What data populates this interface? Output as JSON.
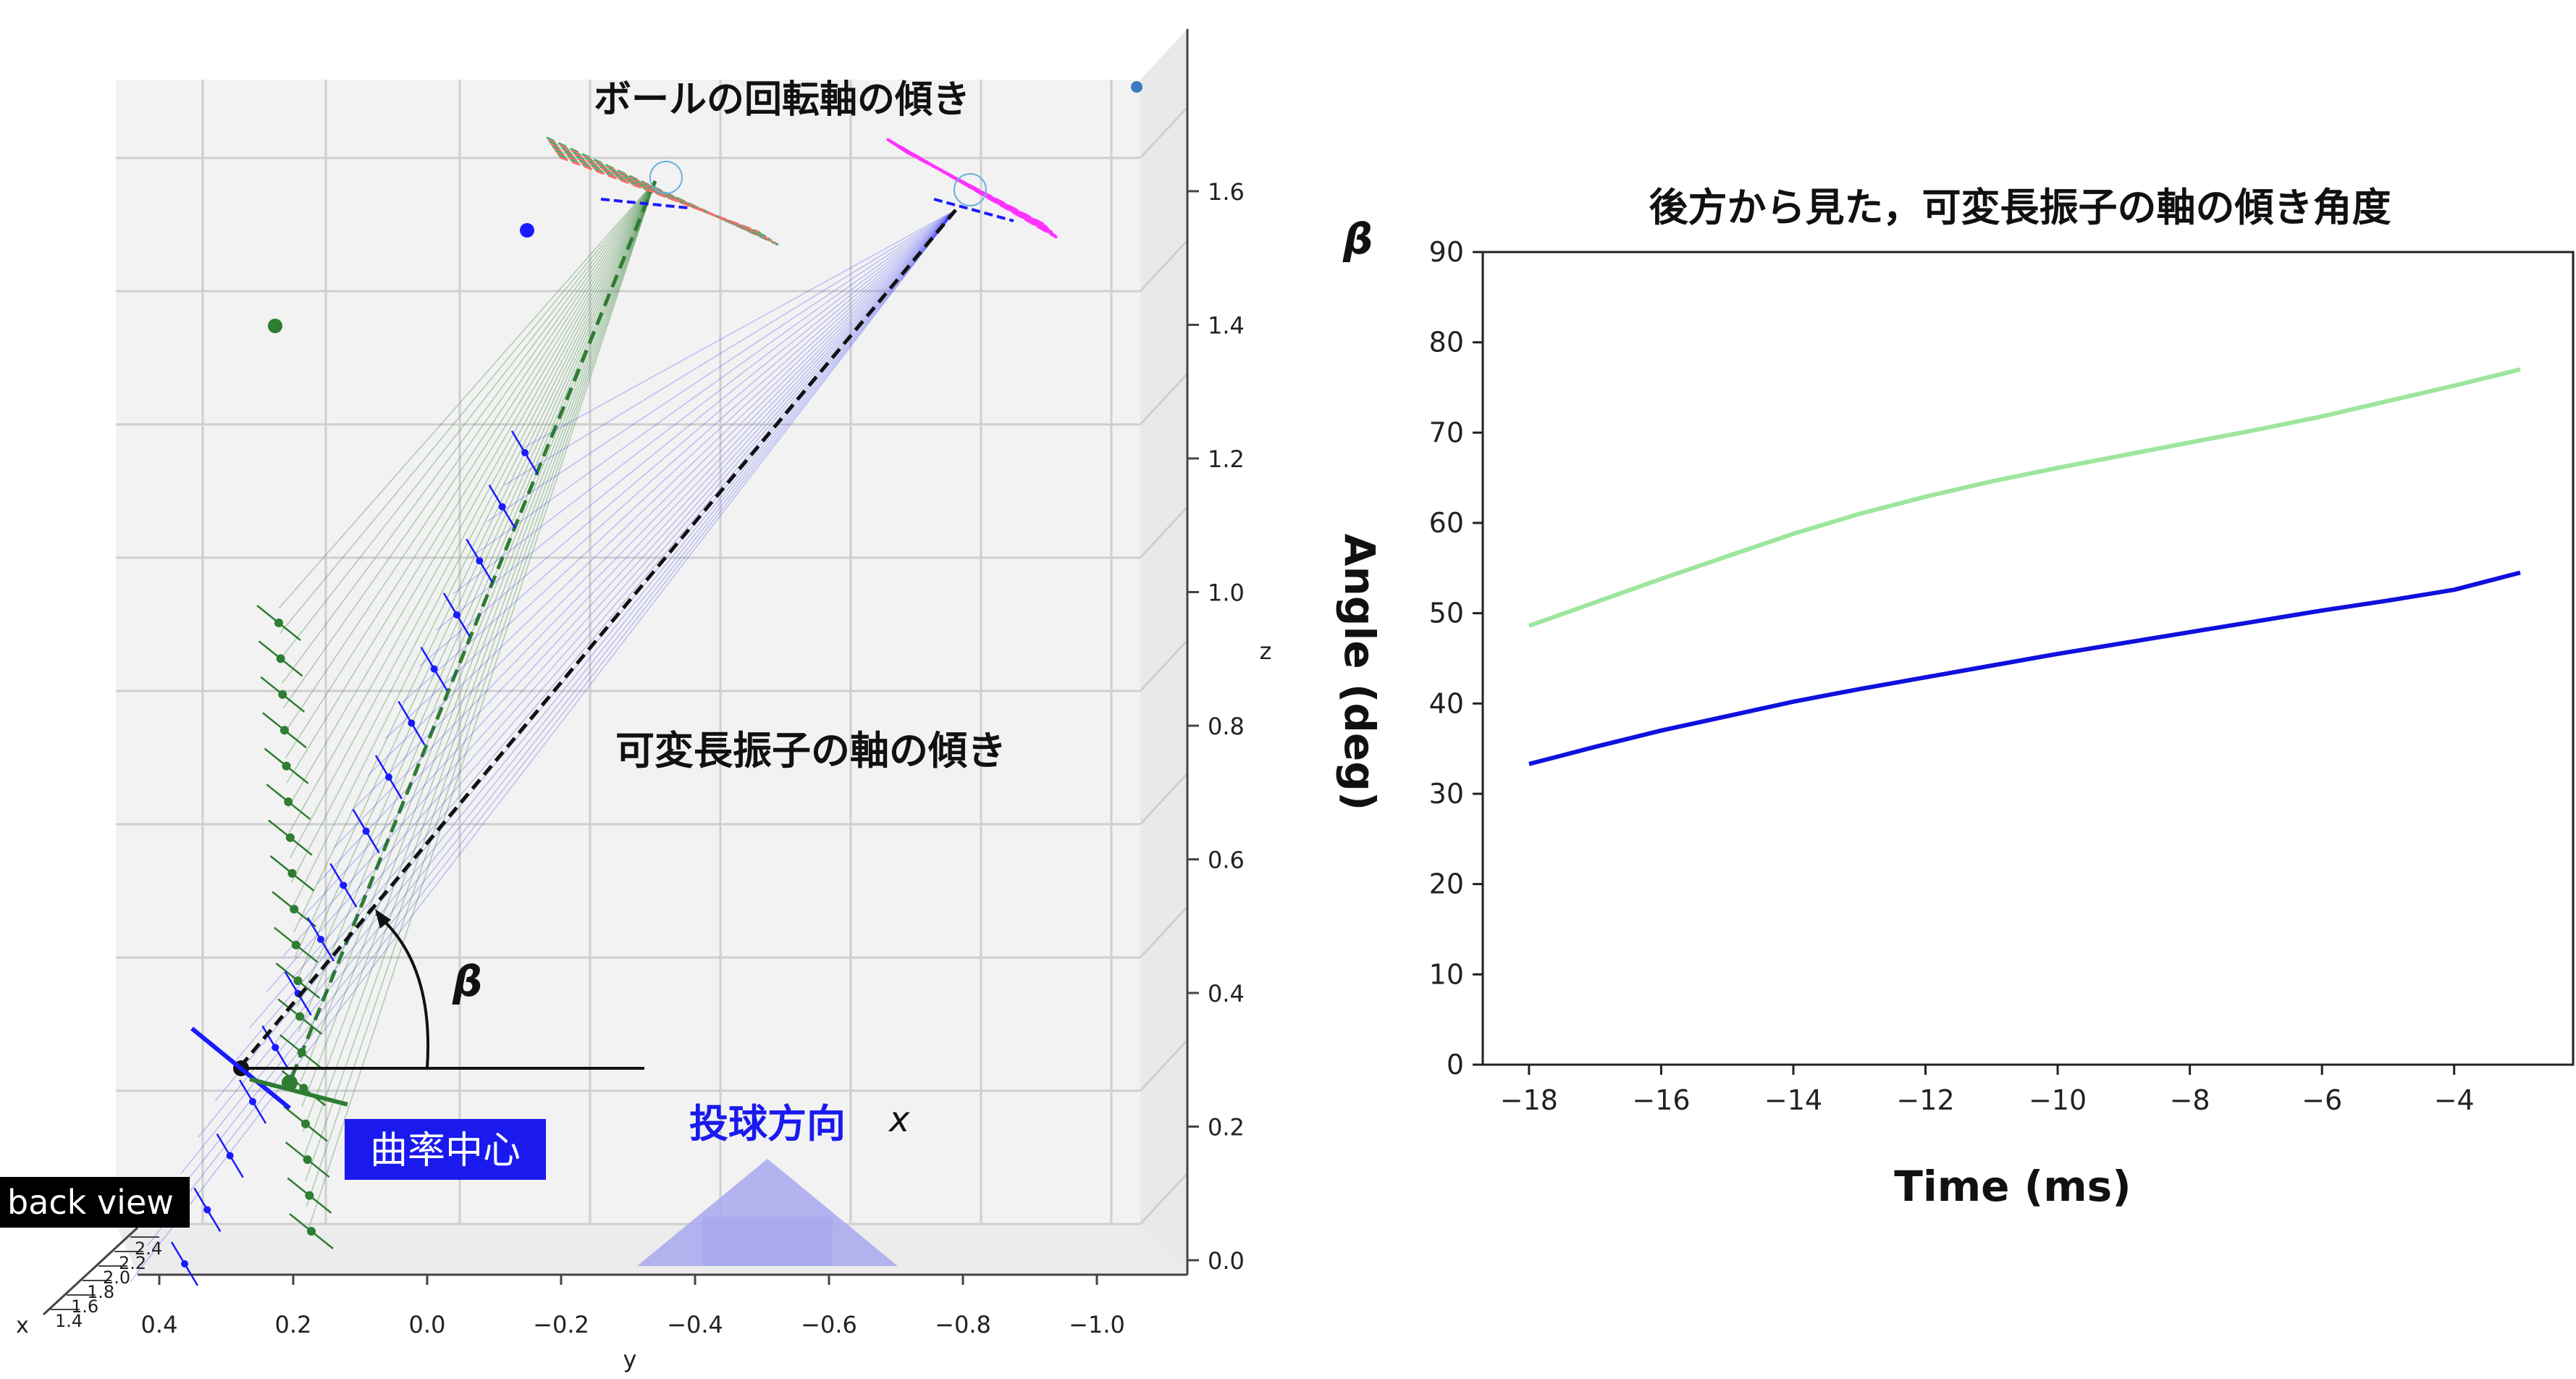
{
  "left_panel": {
    "title": "ボールの回転軸の傾き",
    "pendulum_label": "可変長振子の軸の傾き",
    "beta_symbol": "β",
    "curvature_center_label": "曲率中心",
    "throw_direction_label": "投球方向",
    "x_symbol": "x",
    "back_view_label": "back view",
    "y_axis_label": "y",
    "z_axis_label": "z",
    "x_axis_label": "x",
    "y_ticks": [
      "0.4",
      "0.2",
      "0.0",
      "−0.2",
      "−0.4",
      "−0.6",
      "−0.8",
      "−1.0"
    ],
    "z_ticks": [
      "0.0",
      "0.2",
      "0.4",
      "0.6",
      "0.8",
      "1.0",
      "1.2",
      "1.4",
      "1.6"
    ],
    "x_ticks": [
      "1.4",
      "1.6",
      "1.8",
      "2.0",
      "2.2",
      "2.4"
    ],
    "colors": {
      "pane": "#f2f2f2",
      "grid": "#cfcfcf",
      "green": "#2e7d32",
      "blue": "#1a1aff",
      "magenta": "#ff33ff",
      "label_box": "#1a1aee",
      "arrow": "#a8a8f0"
    }
  },
  "chart_data": {
    "type": "line",
    "title": "後方から見た，可変長振子の軸の傾き角度",
    "corner_label": "β",
    "xlabel": "Time (ms)",
    "ylabel": "Angle (deg)",
    "xlim": [
      -18.7,
      -2.2
    ],
    "ylim": [
      0,
      90
    ],
    "xticks": [
      -18,
      -16,
      -14,
      -12,
      -10,
      -8,
      -6,
      -4
    ],
    "xtick_labels": [
      "−18",
      "−16",
      "−14",
      "−12",
      "−10",
      "−8",
      "−6",
      "−4"
    ],
    "yticks": [
      0,
      10,
      20,
      30,
      40,
      50,
      60,
      70,
      80,
      90
    ],
    "series": [
      {
        "color": "#9de69d",
        "x": [
          -18,
          -17,
          -16,
          -15,
          -14,
          -13,
          -12,
          -11,
          -10,
          -9,
          -8,
          -7,
          -6,
          -5,
          -4,
          -3
        ],
        "y": [
          48.6,
          51.2,
          53.8,
          56.3,
          58.8,
          61.0,
          62.9,
          64.6,
          66.1,
          67.5,
          68.9,
          70.3,
          71.8,
          73.5,
          75.2,
          77.0
        ]
      },
      {
        "color": "#1010dd",
        "x": [
          -18,
          -17,
          -16,
          -15,
          -14,
          -13,
          -12,
          -11,
          -10,
          -9,
          -8,
          -7,
          -6,
          -5,
          -4,
          -3
        ],
        "y": [
          33.3,
          35.2,
          37.0,
          38.6,
          40.2,
          41.6,
          42.9,
          44.2,
          45.5,
          46.7,
          47.9,
          49.1,
          50.3,
          51.4,
          52.6,
          54.5
        ]
      }
    ]
  }
}
